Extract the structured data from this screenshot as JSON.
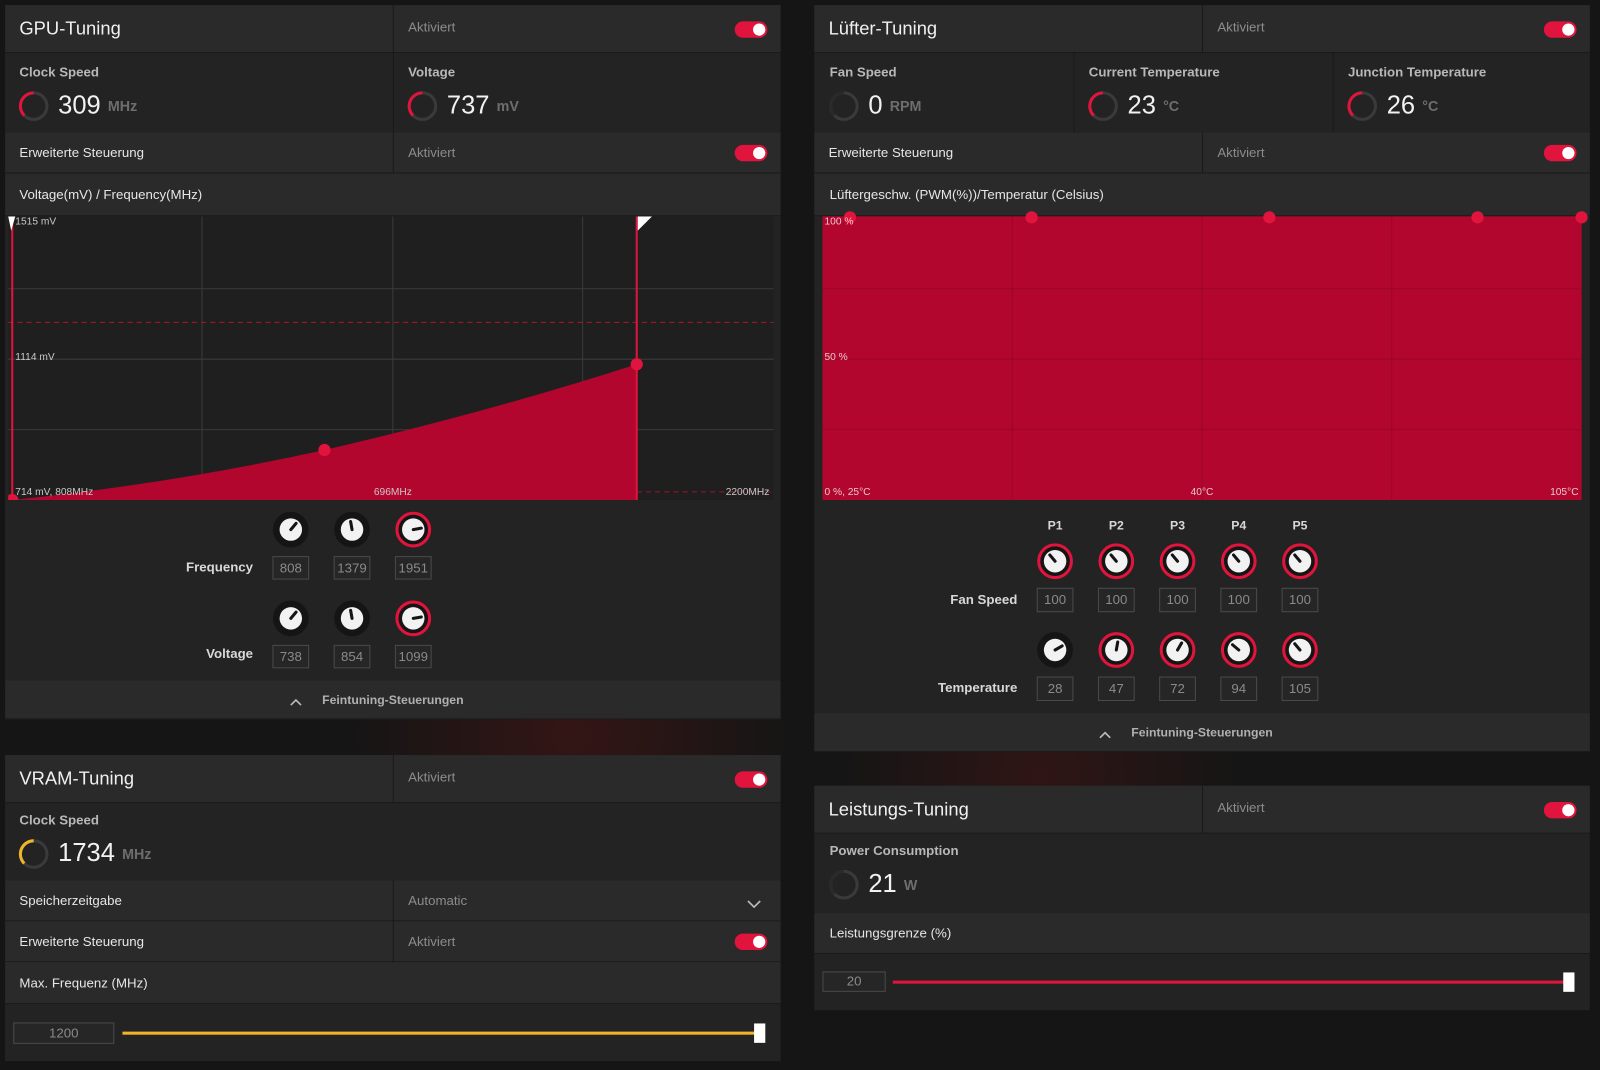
{
  "gpu_tuning": {
    "title": "GPU-Tuning",
    "status": "Aktiviert",
    "clock_speed": {
      "label": "Clock Speed",
      "value": "309",
      "unit": "MHz"
    },
    "voltage": {
      "label": "Voltage",
      "value": "737",
      "unit": "mV"
    },
    "advanced_control": {
      "label": "Erweiterte Steuerung",
      "status": "Aktiviert"
    },
    "curve": {
      "title": "Voltage(mV) / Frequency(MHz)",
      "max_voltage": "1515 mV",
      "mid_voltage": "1114 mV",
      "origin": "714 mV, 808MHz",
      "mid_frequency": "696MHz",
      "max_frequency": "2200MHz"
    },
    "frequency": {
      "label": "Frequency",
      "points": [
        "808",
        "1379",
        "1951"
      ]
    },
    "voltage_points": {
      "label": "Voltage",
      "points": [
        "738",
        "854",
        "1099"
      ]
    },
    "fine_tuning": "Feintuning-Steuerungen"
  },
  "vram_tuning": {
    "title": "VRAM-Tuning",
    "status": "Aktiviert",
    "clock_speed": {
      "label": "Clock Speed",
      "value": "1734",
      "unit": "MHz"
    },
    "memory_timing": {
      "label": "Speicherzeitgabe",
      "value": "Automatic"
    },
    "advanced_control": {
      "label": "Erweiterte Steuerung",
      "status": "Aktiviert"
    },
    "max_frequency": {
      "label": "Max. Frequenz (MHz)",
      "value": "1200"
    }
  },
  "fan_tuning": {
    "title": "Lüfter-Tuning",
    "status": "Aktiviert",
    "fan_speed": {
      "label": "Fan Speed",
      "value": "0",
      "unit": "RPM"
    },
    "current_temperature": {
      "label": "Current Temperature",
      "value": "23",
      "unit": "°C"
    },
    "junction_temperature": {
      "label": "Junction Temperature",
      "value": "26",
      "unit": "°C"
    },
    "advanced_control": {
      "label": "Erweiterte Steuerung",
      "status": "Aktiviert"
    },
    "curve": {
      "title": "Lüftergeschw. (PWM(%))/Temperatur (Celsius)",
      "max_speed": "100 %",
      "mid_speed": "50 %",
      "origin": "0 %, 25°C",
      "mid_temperature": "40°C",
      "max_temperature": "105°C"
    },
    "points": [
      "P1",
      "P2",
      "P3",
      "P4",
      "P5"
    ],
    "fan_speed_points": {
      "label": "Fan Speed",
      "values": [
        "100",
        "100",
        "100",
        "100",
        "100"
      ]
    },
    "temperature_points": {
      "label": "Temperature",
      "values": [
        "28",
        "47",
        "72",
        "94",
        "105"
      ]
    },
    "fine_tuning": "Feintuning-Steuerungen"
  },
  "power_tuning": {
    "title": "Leistungs-Tuning",
    "status": "Aktiviert",
    "power_consumption": {
      "label": "Power Consumption",
      "value": "21",
      "unit": "W"
    },
    "power_limit": {
      "label": "Leistungsgrenze (%)",
      "value": "20"
    }
  }
}
